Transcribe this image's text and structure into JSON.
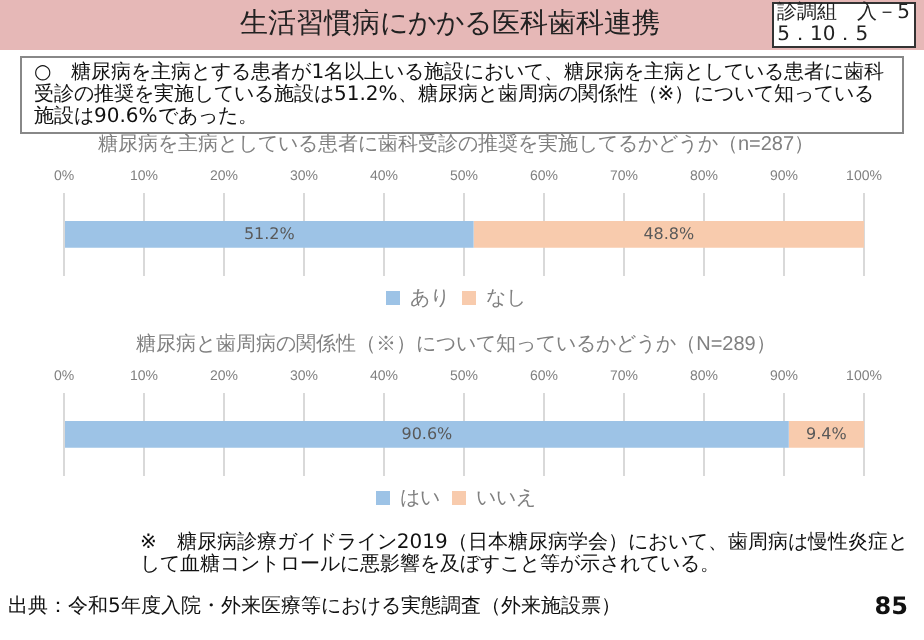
{
  "chart_data": [
    {
      "type": "bar",
      "orientation": "horizontal",
      "stacked": true,
      "title": "糖尿病を主病としている患者に歯科受診の推奨を実施してるかどうか（n=287）",
      "annotations": [
        "生活習慣病にかかる医科歯科連携",
        "診調組　入－5",
        "5．10．5",
        "○　糖尿病を主病とする患者が1名以上いる施設において、糖尿病を主病としている患者に歯科受診の推奨を実施している施設は51.2%、糖尿病と歯周病の関係性（※）について知っている施設は90.6%であった。"
      ],
      "categories": [
        null
      ],
      "series": [
        {
          "name": "あり",
          "color": "#9dc3e6",
          "values": [
            51.2
          ],
          "value_labels": [
            "51.2%"
          ]
        },
        {
          "name": "なし",
          "color": "#f8cbad",
          "values": [
            48.8
          ],
          "value_labels": [
            "48.8%"
          ]
        }
      ],
      "xlim": [
        0,
        100
      ],
      "xticks": [
        {
          "value": 0,
          "label": "0%"
        },
        {
          "value": 10,
          "label": "10%"
        },
        {
          "value": 20,
          "label": "20%"
        },
        {
          "value": 30,
          "label": "30%"
        },
        {
          "value": 40,
          "label": "40%"
        },
        {
          "value": 50,
          "label": "50%"
        },
        {
          "value": 60,
          "label": "60%"
        },
        {
          "value": 70,
          "label": "70%"
        },
        {
          "value": 80,
          "label": "80%"
        },
        {
          "value": 90,
          "label": "90%"
        },
        {
          "value": 100,
          "label": "100%"
        }
      ],
      "grid": "x",
      "legend": "bottom",
      "tick_labels": "x"
    },
    {
      "type": "bar",
      "orientation": "horizontal",
      "stacked": true,
      "title": "糖尿病と歯周病の関係性（※）について知っているかどうか（N=289）",
      "annotations": [
        "※　糖尿病診療ガイドライン2019（日本糖尿病学会）において、歯周病は慢性炎症として血糖コントロールに悪影響を及ぼすこと等が示されている。",
        "出典：令和5年度入院・外来医療等における実態調査（外来施設票）",
        "85"
      ],
      "categories": [
        null
      ],
      "series": [
        {
          "name": "はい",
          "color": "#9dc3e6",
          "values": [
            90.6
          ],
          "value_labels": [
            "90.6%"
          ]
        },
        {
          "name": "いいえ",
          "color": "#f8cbad",
          "values": [
            9.4
          ],
          "value_labels": [
            "9.4%"
          ]
        }
      ],
      "xlim": [
        0,
        100
      ],
      "xticks": [
        {
          "value": 0,
          "label": "0%"
        },
        {
          "value": 10,
          "label": "10%"
        },
        {
          "value": 20,
          "label": "20%"
        },
        {
          "value": 30,
          "label": "30%"
        },
        {
          "value": 40,
          "label": "40%"
        },
        {
          "value": 50,
          "label": "50%"
        },
        {
          "value": 60,
          "label": "60%"
        },
        {
          "value": 70,
          "label": "70%"
        },
        {
          "value": 80,
          "label": "80%"
        },
        {
          "value": 90,
          "label": "90%"
        },
        {
          "value": 100,
          "label": "100%"
        }
      ],
      "grid": "x",
      "legend": "bottom",
      "tick_labels": "x"
    }
  ]
}
